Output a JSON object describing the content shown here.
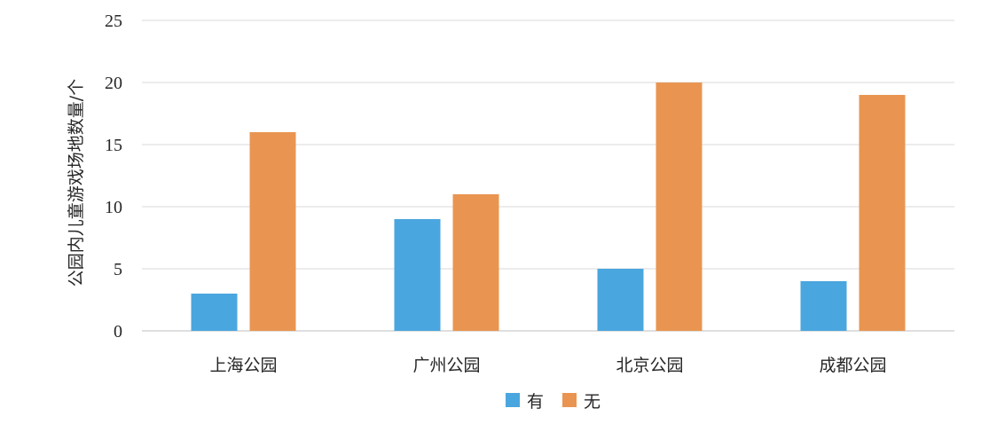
{
  "chart_data": {
    "type": "bar",
    "title": "",
    "xlabel": "",
    "ylabel": "公园内儿童游戏场地数量/个",
    "categories": [
      "上海公园",
      "广州公园",
      "北京公园",
      "成都公园"
    ],
    "series": [
      {
        "name": "有",
        "values": [
          3,
          9,
          5,
          4
        ],
        "color": "#4aa6de"
      },
      {
        "name": "无",
        "values": [
          16,
          11,
          20,
          19
        ],
        "color": "#e99551"
      }
    ],
    "ylim": [
      0,
      25
    ],
    "yticks": [
      0,
      5,
      10,
      15,
      20,
      25
    ],
    "grid": true,
    "legend_position": "bottom"
  }
}
